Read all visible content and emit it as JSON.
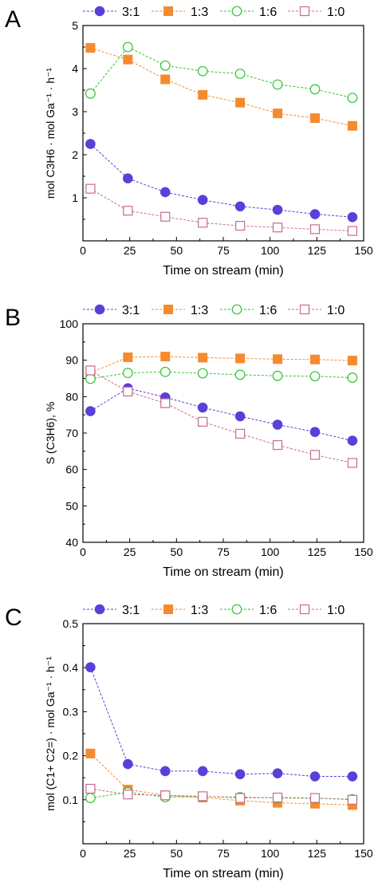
{
  "colors": {
    "s31": "#5b3fd9",
    "s13": "#f58a2e",
    "s16": "#2ec62e",
    "s10": "#c76b8b",
    "axis": "#000000"
  },
  "chart_data": [
    {
      "panel_label": "A",
      "type": "line",
      "xlabel": "Time on stream (min)",
      "ylabel": "mol C3H6 · mol Ga⁻¹ · h⁻¹",
      "xlim": [
        0,
        150
      ],
      "ylim": [
        0,
        5
      ],
      "xticks": [
        "0",
        "25",
        "50",
        "75",
        "100",
        "125",
        "150"
      ],
      "yticks": [
        "1",
        "2",
        "3",
        "4",
        "5"
      ],
      "grid": false,
      "legend_position": "top",
      "x": [
        4,
        24,
        44,
        64,
        84,
        104,
        124,
        144
      ],
      "series": [
        {
          "name": "3:1",
          "marker": "filled-circle",
          "values": [
            2.25,
            1.45,
            1.13,
            0.95,
            0.8,
            0.72,
            0.62,
            0.55
          ]
        },
        {
          "name": "1:3",
          "marker": "filled-square",
          "values": [
            4.48,
            4.21,
            3.75,
            3.39,
            3.21,
            2.96,
            2.85,
            2.67
          ]
        },
        {
          "name": "1:6",
          "marker": "open-circle",
          "values": [
            3.42,
            4.5,
            4.07,
            3.94,
            3.88,
            3.63,
            3.52,
            3.32
          ]
        },
        {
          "name": "1:0",
          "marker": "open-square",
          "values": [
            1.21,
            0.7,
            0.56,
            0.42,
            0.35,
            0.31,
            0.27,
            0.23
          ]
        }
      ]
    },
    {
      "panel_label": "B",
      "type": "line",
      "xlabel": "Time on stream (min)",
      "ylabel": "S (C3H6), %",
      "xlim": [
        0,
        150
      ],
      "ylim": [
        40,
        100
      ],
      "xticks": [
        "0",
        "25",
        "50",
        "75",
        "100",
        "125",
        "150"
      ],
      "yticks": [
        "40",
        "50",
        "60",
        "70",
        "80",
        "90",
        "100"
      ],
      "grid": false,
      "legend_position": "top",
      "x": [
        4,
        24,
        44,
        64,
        84,
        104,
        124,
        144
      ],
      "series": [
        {
          "name": "3:1",
          "marker": "filled-circle",
          "values": [
            76.0,
            82.3,
            79.8,
            77.0,
            74.6,
            72.3,
            70.3,
            67.9
          ]
        },
        {
          "name": "1:3",
          "marker": "filled-square",
          "values": [
            86.5,
            90.8,
            91.0,
            90.7,
            90.5,
            90.3,
            90.2,
            89.9
          ]
        },
        {
          "name": "1:6",
          "marker": "open-circle",
          "values": [
            84.9,
            86.5,
            86.8,
            86.4,
            86.0,
            85.7,
            85.6,
            85.2
          ]
        },
        {
          "name": "1:0",
          "marker": "open-square",
          "values": [
            87.2,
            81.4,
            78.2,
            73.1,
            69.8,
            66.7,
            64.0,
            61.8
          ]
        }
      ]
    },
    {
      "panel_label": "C",
      "type": "line",
      "xlabel": "Time on stream (min)",
      "ylabel": "mol (C1+ C2=) · mol Ga⁻¹ · h⁻¹",
      "xlim": [
        0,
        150
      ],
      "ylim": [
        0.0,
        0.5
      ],
      "xticks": [
        "0",
        "25",
        "50",
        "75",
        "100",
        "125",
        "150"
      ],
      "yticks": [
        "0.1",
        "0.2",
        "0.3",
        "0.4",
        "0.5"
      ],
      "grid": false,
      "legend_position": "top",
      "x": [
        4,
        24,
        44,
        64,
        84,
        104,
        124,
        144
      ],
      "series": [
        {
          "name": "3:1",
          "marker": "filled-circle",
          "values": [
            0.401,
            0.181,
            0.165,
            0.165,
            0.158,
            0.16,
            0.153,
            0.153
          ]
        },
        {
          "name": "1:3",
          "marker": "filled-square",
          "values": [
            0.205,
            0.123,
            0.11,
            0.105,
            0.098,
            0.093,
            0.091,
            0.088
          ]
        },
        {
          "name": "1:6",
          "marker": "open-circle",
          "values": [
            0.104,
            0.117,
            0.106,
            0.107,
            0.106,
            0.104,
            0.103,
            0.101
          ]
        },
        {
          "name": "1:0",
          "marker": "open-square",
          "values": [
            0.125,
            0.112,
            0.11,
            0.108,
            0.104,
            0.105,
            0.104,
            0.1
          ]
        }
      ]
    }
  ]
}
